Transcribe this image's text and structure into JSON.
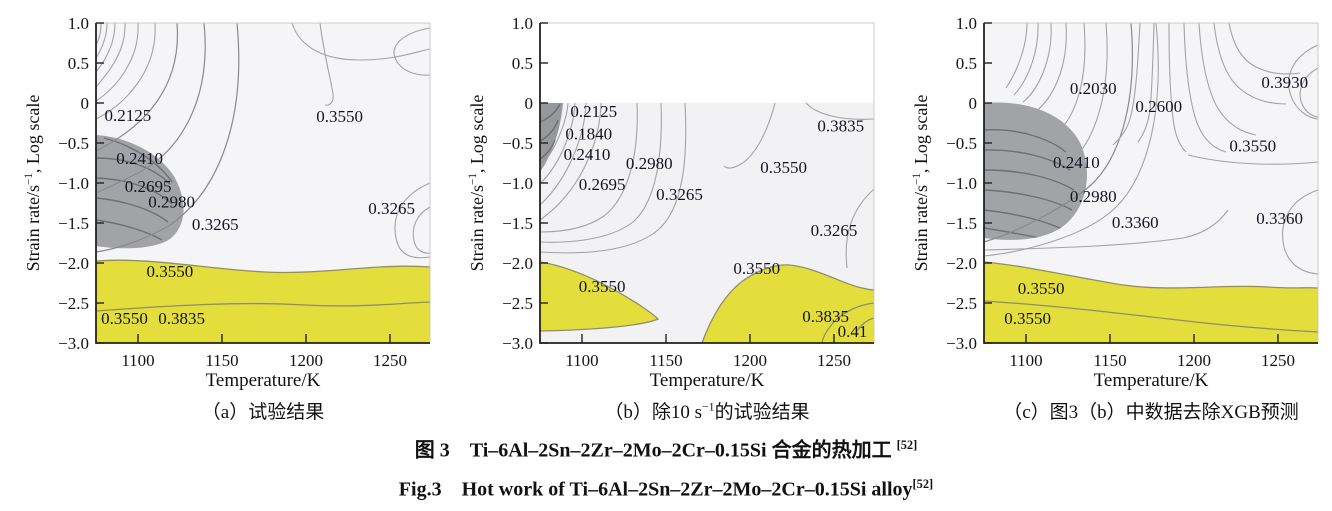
{
  "colors": {
    "domain_yellow": "#e4de3d",
    "instability_gray": "#a2a3a6",
    "instability_gray_b": "#96989c",
    "contour_line": "#a3a3a6",
    "plot_background": "#f5f4f6"
  },
  "figure_captions": {
    "zh_segments": [
      {
        "t": "图 3　Ti–6Al–2Sn–2Zr–2Mo–2Cr–0.15Si 合金的热加工 "
      },
      {
        "t": "[52]",
        "sup": true
      }
    ],
    "en_segments": [
      {
        "t": "Fig.3　Hot work of Ti–6Al–2Sn–2Zr–2Mo–2Cr–0.15Si alloy"
      },
      {
        "t": "[52]",
        "sup": true
      }
    ]
  },
  "chart_data": [
    {
      "id": "a",
      "type": "contour",
      "title_segments": [
        {
          "t": "（a）试验结果"
        }
      ],
      "xlabel": "Temperature/K",
      "ylabel_segments": [
        {
          "t": "Strain rate/s"
        },
        {
          "t": "−1",
          "sup": true
        },
        {
          "t": ", Log scale"
        }
      ],
      "x_ticks": [
        1100,
        1150,
        1200,
        1250
      ],
      "y_ticks": [
        1.0,
        0.5,
        0,
        -0.5,
        -1.0,
        -1.5,
        -2.0,
        -2.5,
        -3.0
      ],
      "x_range": [
        1075,
        1275
      ],
      "y_range": [
        -3.0,
        1.0
      ],
      "grid": false,
      "contour_labels": [
        {
          "v": "0.2125",
          "T": 1094,
          "r": -0.15
        },
        {
          "v": "0.2410",
          "T": 1101,
          "r": -0.69
        },
        {
          "v": "0.2695",
          "T": 1106,
          "r": -1.04
        },
        {
          "v": "0.2980",
          "T": 1120,
          "r": -1.23
        },
        {
          "v": "0.3265",
          "T": 1146,
          "r": -1.51
        },
        {
          "v": "0.3550",
          "T": 1220,
          "r": -0.16
        },
        {
          "v": "0.3265",
          "T": 1251,
          "r": -1.31
        },
        {
          "v": "0.3550",
          "T": 1119,
          "r": -2.1
        },
        {
          "v": "0.3550",
          "T": 1092,
          "r": -2.69
        },
        {
          "v": "0.3835",
          "T": 1126,
          "r": -2.69
        }
      ],
      "regions": {
        "instability": "gray shaded region, upper-left, T≈1075–1135 K, log strain rate ≈ −0.4 to −1.8",
        "instability_color": "#a2a3a6",
        "domain": "yellow shaded band, full width, log strain rate below ≈ −2.0",
        "domain_color": "#e4de3d"
      }
    },
    {
      "id": "b",
      "type": "contour",
      "title_segments": [
        {
          "t": "（b）除10 s"
        },
        {
          "t": "−1",
          "sup": true
        },
        {
          "t": "的试验结果"
        }
      ],
      "xlabel": "Temperature/K",
      "ylabel_segments": [
        {
          "t": "Strain rate/s"
        },
        {
          "t": "−1",
          "sup": true
        },
        {
          "t": ", Log scale"
        }
      ],
      "x_ticks": [
        1100,
        1150,
        1200,
        1250
      ],
      "y_ticks": [
        1.0,
        0.5,
        0,
        -0.5,
        -1.0,
        -1.5,
        -2.0,
        -2.5,
        -3.0
      ],
      "x_range": [
        1075,
        1275
      ],
      "y_range": [
        -3.0,
        1.0
      ],
      "grid": false,
      "contour_labels": [
        {
          "v": "0.2125",
          "T": 1107,
          "r": -0.1
        },
        {
          "v": "0.1840",
          "T": 1104,
          "r": -0.38
        },
        {
          "v": "0.2410",
          "T": 1103,
          "r": -0.64
        },
        {
          "v": "0.2980",
          "T": 1140,
          "r": -0.75
        },
        {
          "v": "0.2695",
          "T": 1112,
          "r": -1.01
        },
        {
          "v": "0.3265",
          "T": 1158,
          "r": -1.14
        },
        {
          "v": "0.3550",
          "T": 1220,
          "r": -0.8
        },
        {
          "v": "0.3835",
          "T": 1254,
          "r": -0.28
        },
        {
          "v": "0.3265",
          "T": 1250,
          "r": -1.59
        },
        {
          "v": "0.3550",
          "T": 1112,
          "r": -2.29
        },
        {
          "v": "0.3550",
          "T": 1204,
          "r": -2.06
        },
        {
          "v": "0.3835",
          "T": 1245,
          "r": -2.66
        },
        {
          "v": "0.41",
          "T": 1261,
          "r": -2.85
        }
      ],
      "regions": {
        "instability": "small gray region, top-left corner below log strain rate 0",
        "instability_color": "#96989c",
        "domain": "two yellow regions near bottom: left wedge T≈1075–1125 K and right region T≈1170–1275 K",
        "domain_color": "#e4de3d"
      }
    },
    {
      "id": "c",
      "type": "contour",
      "title_segments": [
        {
          "t": "（c）图3（b）中数据去除XGB预测"
        }
      ],
      "xlabel": "Temperature/K",
      "ylabel_segments": [
        {
          "t": "Strain rate/s"
        },
        {
          "t": "−1",
          "sup": true
        },
        {
          "t": ", Log scale"
        }
      ],
      "x_ticks": [
        1100,
        1150,
        1200,
        1250
      ],
      "y_ticks": [
        1.0,
        0.5,
        0,
        -0.5,
        -1.0,
        -1.5,
        -2.0,
        -2.5,
        -3.0
      ],
      "x_range": [
        1075,
        1275
      ],
      "y_range": [
        -3.0,
        1.0
      ],
      "grid": false,
      "contour_labels": [
        {
          "v": "0.2030",
          "T": 1140,
          "r": 0.19
        },
        {
          "v": "0.2600",
          "T": 1179,
          "r": -0.04
        },
        {
          "v": "0.3930",
          "T": 1254,
          "r": 0.26
        },
        {
          "v": "0.2410",
          "T": 1130,
          "r": -0.74
        },
        {
          "v": "0.3550",
          "T": 1235,
          "r": -0.53
        },
        {
          "v": "0.2980",
          "T": 1140,
          "r": -1.16
        },
        {
          "v": "0.3360",
          "T": 1165,
          "r": -1.49
        },
        {
          "v": "0.3360",
          "T": 1251,
          "r": -1.44
        },
        {
          "v": "0.3550",
          "T": 1109,
          "r": -2.31
        },
        {
          "v": "0.3550",
          "T": 1101,
          "r": -2.69
        }
      ],
      "regions": {
        "instability": "large gray region, left side, T≈1075–1135 K, log strain rate ≈ 0 to −1.8",
        "instability_color": "#a2a3a6",
        "domain": "yellow shaded band, full width, log strain rate below ≈ −2.0",
        "domain_color": "#e4de3d"
      }
    }
  ]
}
